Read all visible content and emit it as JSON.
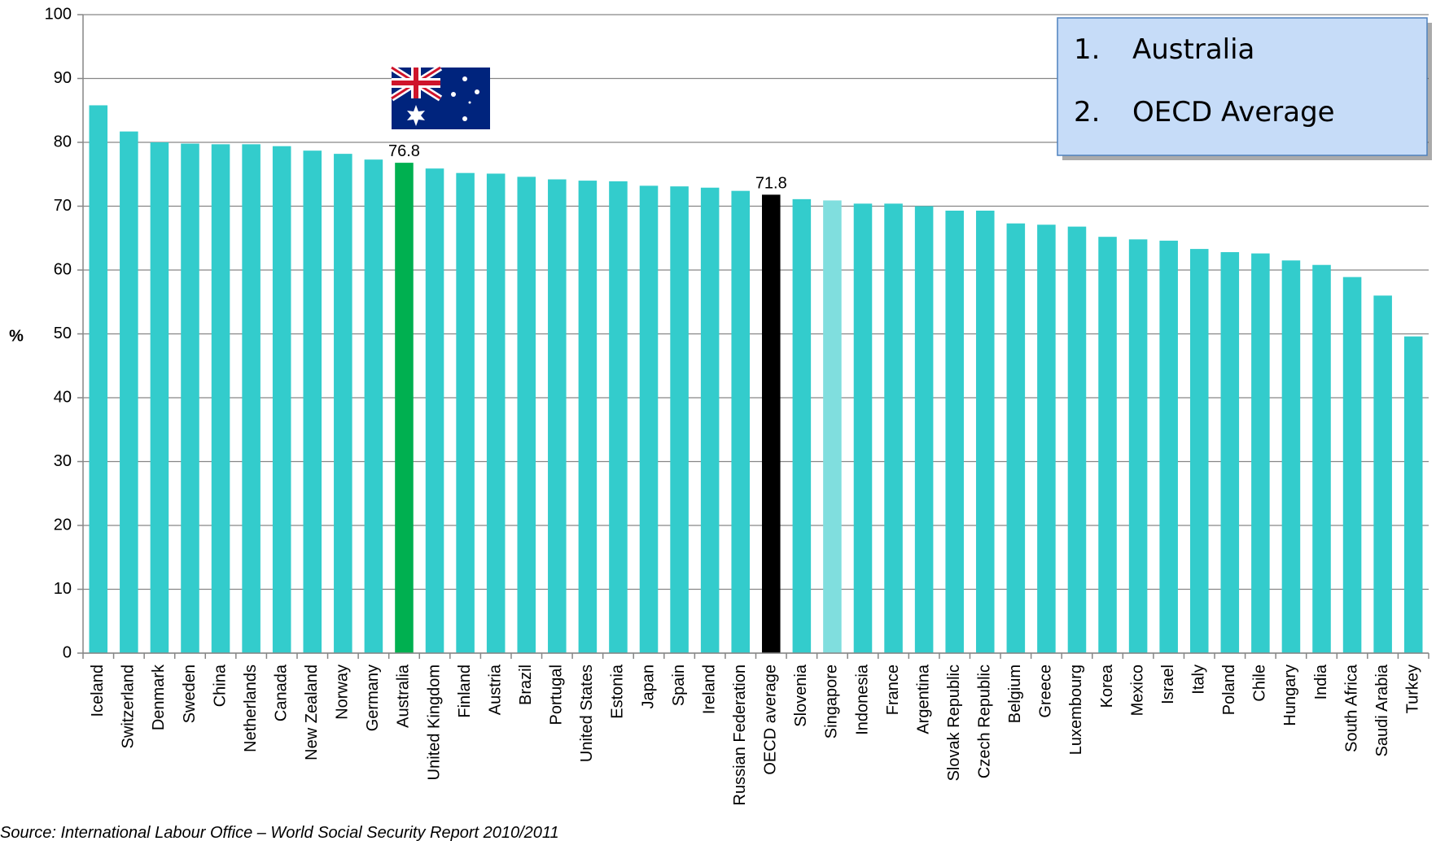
{
  "chart_data": {
    "type": "bar",
    "ylabel": "%",
    "categories": [
      "Iceland",
      "Switzerland",
      "Denmark",
      "Sweden",
      "China",
      "Netherlands",
      "Canada",
      "New Zealand",
      "Norway",
      "Germany",
      "Australia",
      "United Kingdom",
      "Finland",
      "Austria",
      "Brazil",
      "Portugal",
      "United States",
      "Estonia",
      "Japan",
      "Spain",
      "Ireland",
      "Russian Federation",
      "OECD average",
      "Slovenia",
      "Singapore",
      "Indonesia",
      "France",
      "Argentina",
      "Slovak Republic",
      "Czech Republic",
      "Belgium",
      "Greece",
      "Luxembourg",
      "Korea",
      "Mexico",
      "Israel",
      "Italy",
      "Poland",
      "Chile",
      "Hungary",
      "India",
      "South Africa",
      "Saudi Arabia",
      "Turkey"
    ],
    "values": [
      85.8,
      81.7,
      80.0,
      79.8,
      79.7,
      79.7,
      79.4,
      78.7,
      78.2,
      77.3,
      76.8,
      75.9,
      75.2,
      75.1,
      74.6,
      74.2,
      74.0,
      73.9,
      73.2,
      73.1,
      72.9,
      72.4,
      71.8,
      71.1,
      70.9,
      70.4,
      70.4,
      70.0,
      69.3,
      69.3,
      67.3,
      67.1,
      66.8,
      65.2,
      64.8,
      64.6,
      63.3,
      62.8,
      62.6,
      61.5,
      60.8,
      58.9,
      56.0,
      49.6
    ],
    "value_labels": [
      null,
      null,
      null,
      null,
      null,
      null,
      null,
      null,
      null,
      null,
      "76.8",
      null,
      null,
      null,
      null,
      null,
      null,
      null,
      null,
      null,
      null,
      null,
      "71.8",
      null,
      null,
      null,
      null,
      null,
      null,
      null,
      null,
      null,
      null,
      null,
      null,
      null,
      null,
      null,
      null,
      null,
      null,
      null,
      null,
      null
    ],
    "color": "#33cccc",
    "highlight_colors": {
      "Australia": "#00b050",
      "OECD average": "#000000",
      "Singapore": "#80dede"
    },
    "ylim": [
      0,
      100
    ],
    "yticks": [
      0,
      10,
      20,
      30,
      40,
      50,
      60,
      70,
      80,
      90,
      100
    ],
    "grid": true,
    "annotations": [
      "1.",
      "Australia",
      "2.",
      "OECD Average"
    ],
    "source": "Source: International Labour Office – World Social Security Report 2010/2011"
  }
}
